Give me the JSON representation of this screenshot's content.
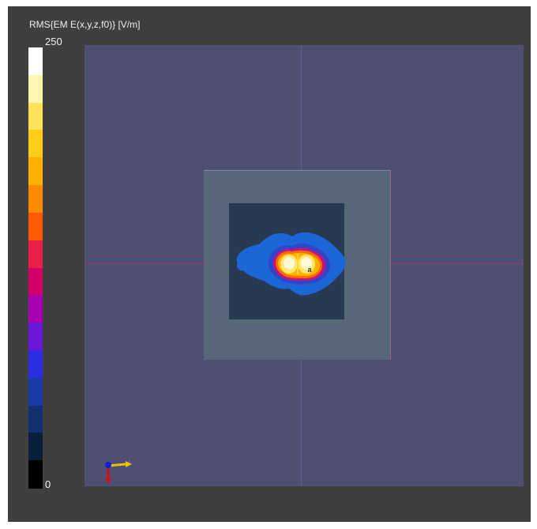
{
  "colorbar": {
    "title": "RMS{EM E(x,y,z,f0)} [V/m]",
    "max_label": "250",
    "min_label": "0",
    "colors": [
      "#ffffff",
      "#fff6b0",
      "#ffe15a",
      "#ffcc1a",
      "#ffb000",
      "#ff8a00",
      "#ff5a00",
      "#e8204a",
      "#d00068",
      "#a800b0",
      "#6a18d8",
      "#2a2ee0",
      "#1a3aa8",
      "#103070",
      "#08203c",
      "#000000"
    ]
  },
  "viewport": {
    "background_color": "#3f3f3f",
    "plane_color": "#4f4f73",
    "probe_label": "a"
  },
  "axis_triad": {
    "icon": "xyz-axis-triad-icon",
    "x_color": "#e6c200",
    "y_color": "#d01010",
    "z_color": "#1020d0"
  }
}
